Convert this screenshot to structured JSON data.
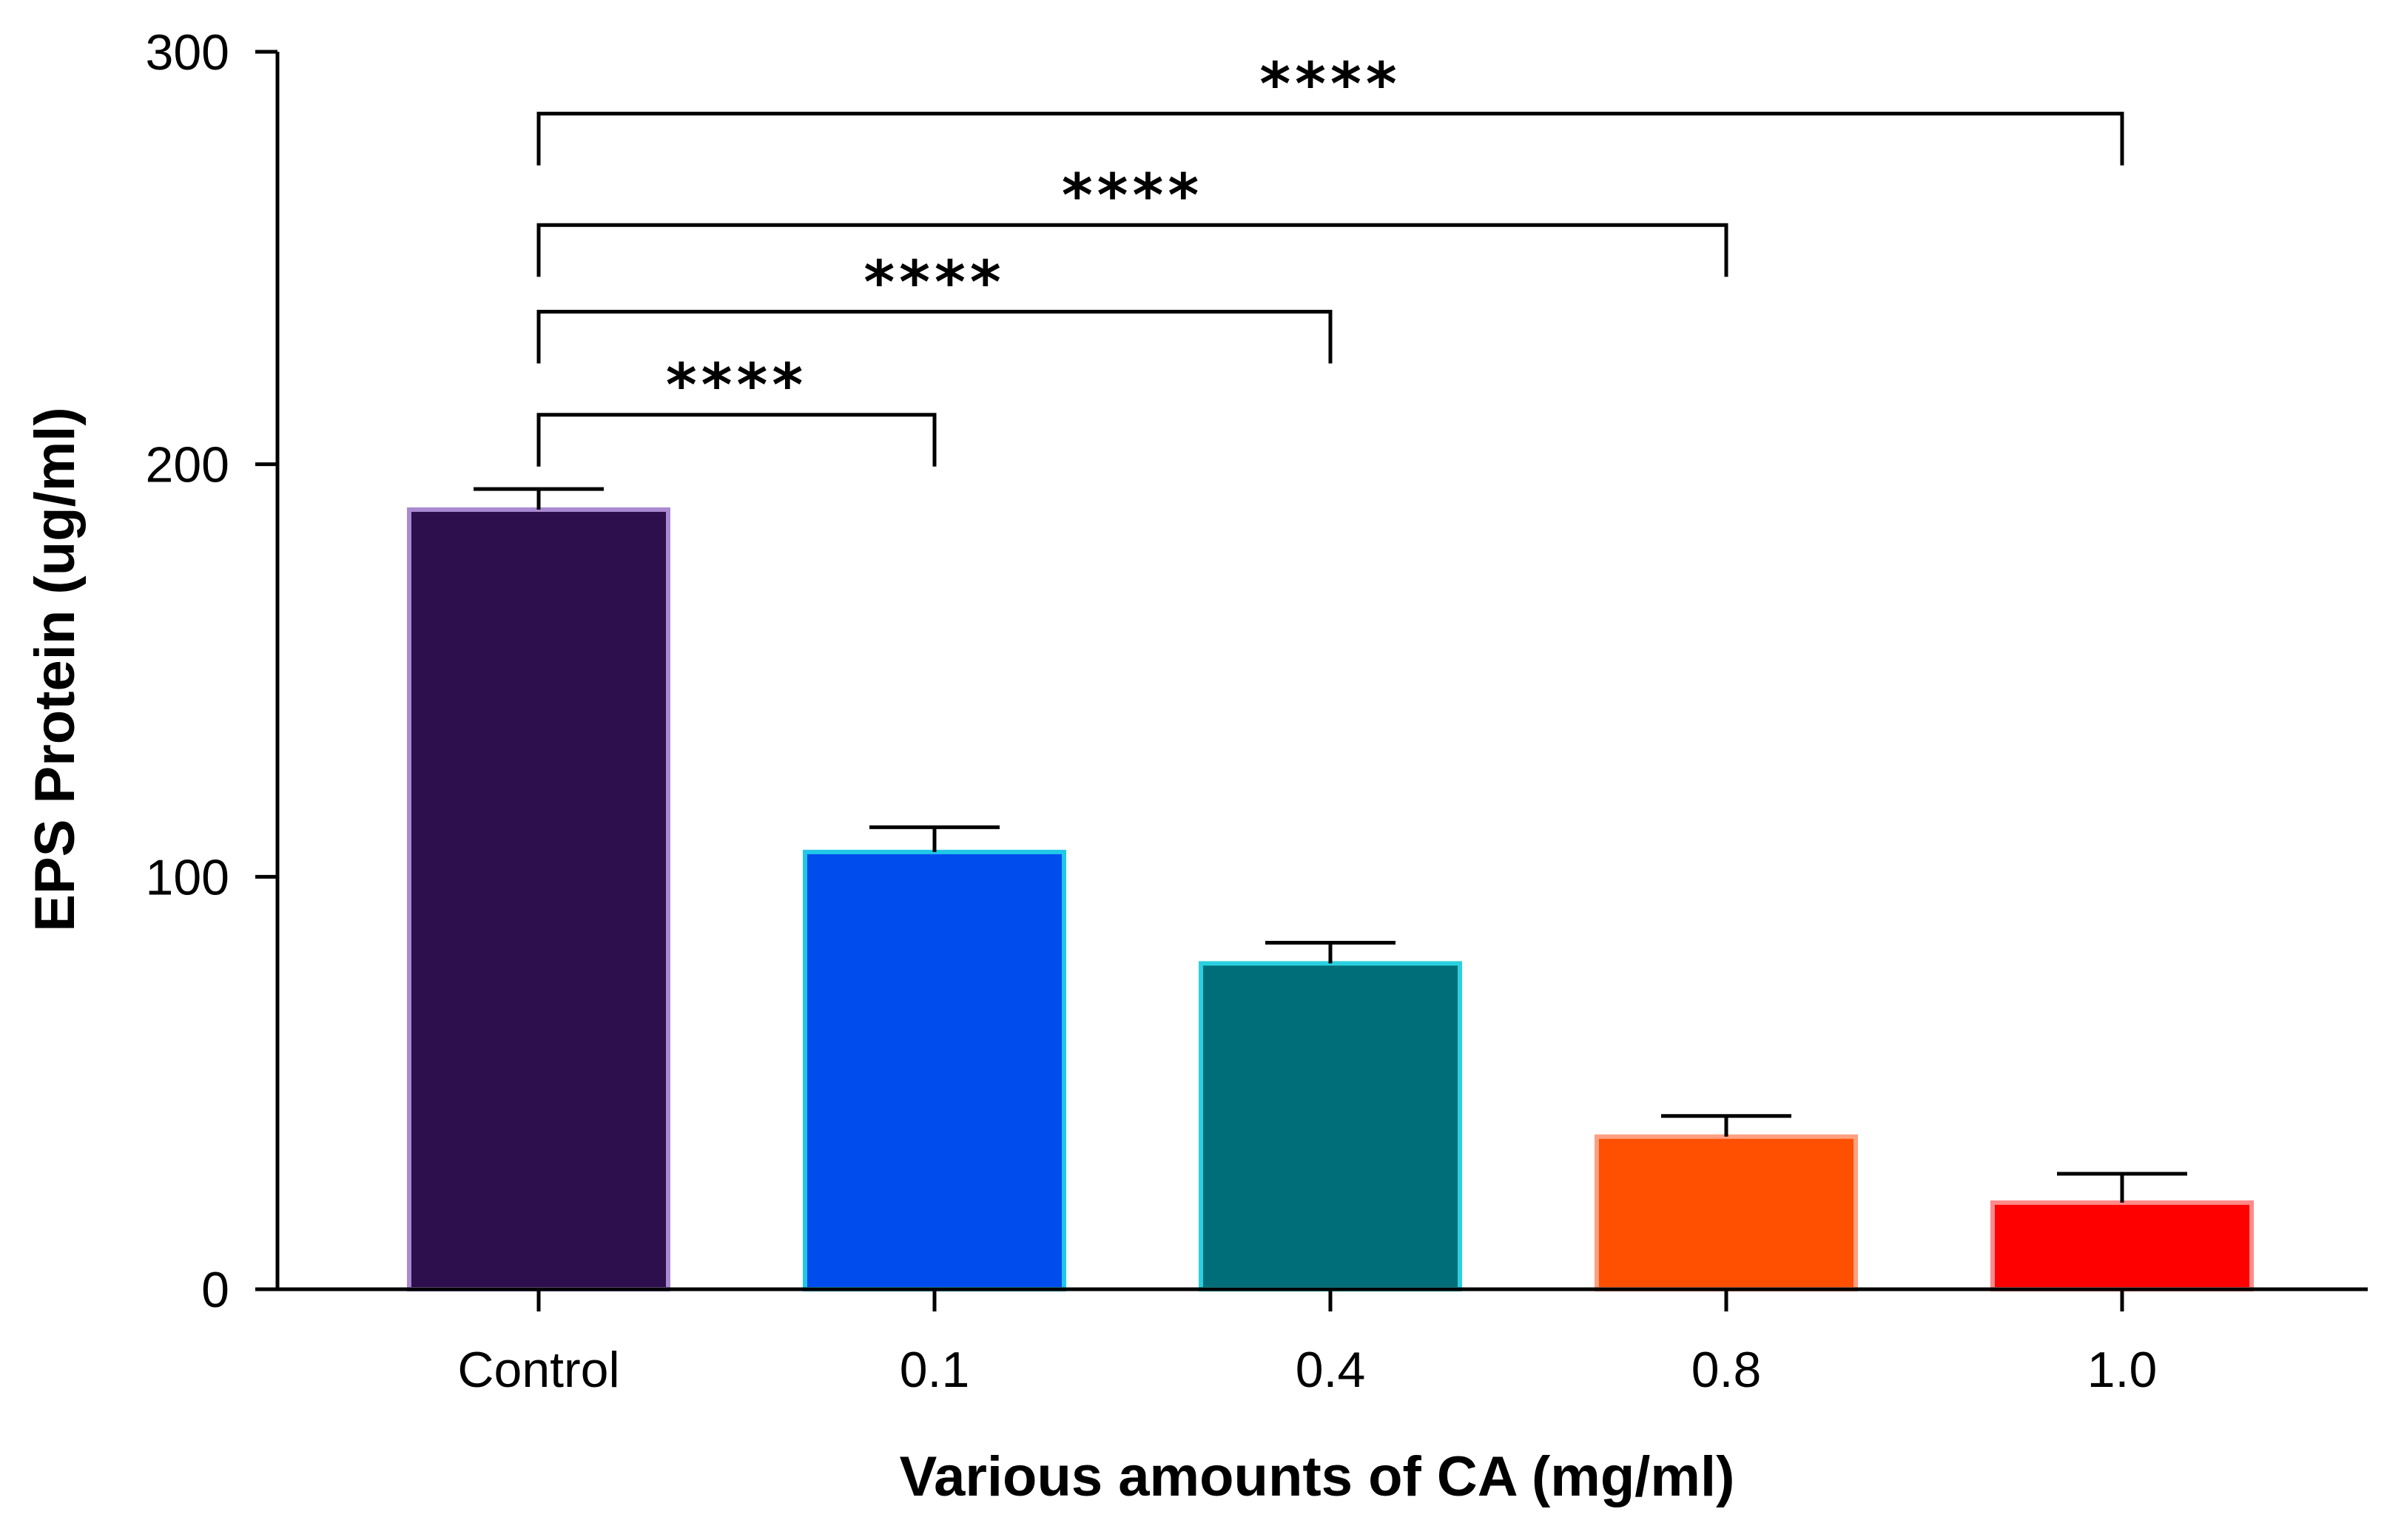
{
  "chart_data": {
    "type": "bar",
    "title": "",
    "xlabel": "Various amounts of CA (mg/ml)",
    "ylabel": "EPS Protein (ug/ml)",
    "ylim": [
      0,
      300
    ],
    "yticks": [
      0,
      100,
      200,
      300
    ],
    "grid": false,
    "categories": [
      "Control",
      "0.1",
      "0.4",
      "0.8",
      "1.0"
    ],
    "values": [
      189,
      106,
      79,
      37,
      21
    ],
    "errors": [
      5,
      6,
      5,
      5,
      7
    ],
    "bar_fill_colors": [
      "#2e0f4d",
      "#004ced",
      "#006e78",
      "#ff4f00",
      "#ff0000"
    ],
    "bar_edge_colors": [
      "#a98ad1",
      "#20c8e6",
      "#2ad0e0",
      "#ffa080",
      "#ff8a8a"
    ],
    "significance": [
      {
        "from": 0,
        "to": 1,
        "label": "****",
        "level": 212
      },
      {
        "from": 0,
        "to": 2,
        "label": "****",
        "level": 237
      },
      {
        "from": 0,
        "to": 3,
        "label": "****",
        "level": 258
      },
      {
        "from": 0,
        "to": 4,
        "label": "****",
        "level": 285
      }
    ]
  }
}
